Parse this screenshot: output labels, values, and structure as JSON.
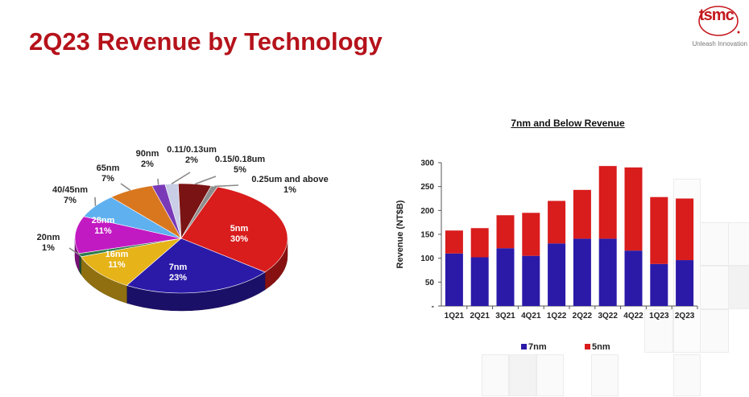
{
  "slide": {
    "title": "2Q23 Revenue by Technology",
    "logo_text": "tsmc",
    "tagline": "Unleash Innovation"
  },
  "chart_data": [
    {
      "type": "pie",
      "title": "",
      "slices": [
        {
          "label": "5nm",
          "value_label": "30%",
          "value": 30,
          "color": "#d91c1c"
        },
        {
          "label": "7nm",
          "value_label": "23%",
          "value": 23,
          "color": "#2b1aa8"
        },
        {
          "label": "16nm",
          "value_label": "11%",
          "value": 11,
          "color": "#e6b318"
        },
        {
          "label": "20nm",
          "value_label": "1%",
          "value": 1,
          "color": "#2e7d4f"
        },
        {
          "label": "28nm",
          "value_label": "11%",
          "value": 11,
          "color": "#c21ac2"
        },
        {
          "label": "40/45nm",
          "value_label": "7%",
          "value": 7,
          "color": "#5fb0ef"
        },
        {
          "label": "65nm",
          "value_label": "7%",
          "value": 7,
          "color": "#d9771f"
        },
        {
          "label": "90nm",
          "value_label": "2%",
          "value": 2,
          "color": "#7a3ab8"
        },
        {
          "label": "0.11/0.13um",
          "value_label": "2%",
          "value": 2,
          "color": "#c9cde6"
        },
        {
          "label": "0.15/0.18um",
          "value_label": "5%",
          "value": 5,
          "color": "#7a1414"
        },
        {
          "label": "0.25um and above",
          "value_label": "1%",
          "value": 1,
          "color": "#8d8d8d"
        }
      ]
    },
    {
      "type": "bar",
      "stacked": true,
      "title": "7nm and Below Revenue",
      "xlabel": "",
      "ylabel": "Revenue (NT$B)",
      "ylim": [
        0,
        300
      ],
      "yticks": [
        "-",
        "50",
        "100",
        "150",
        "200",
        "250",
        "300"
      ],
      "categories": [
        "1Q21",
        "2Q21",
        "3Q21",
        "4Q21",
        "1Q22",
        "2Q22",
        "3Q22",
        "4Q22",
        "1Q23",
        "2Q23"
      ],
      "series": [
        {
          "name": "7nm",
          "color": "#2b1aa8",
          "values": [
            110,
            102,
            121,
            105,
            131,
            141,
            141,
            116,
            88,
            96
          ]
        },
        {
          "name": "5nm",
          "color": "#d91c1c",
          "values": [
            48,
            61,
            69,
            90,
            89,
            102,
            152,
            174,
            140,
            129
          ]
        }
      ],
      "legend_position": "bottom",
      "grid": false
    }
  ]
}
